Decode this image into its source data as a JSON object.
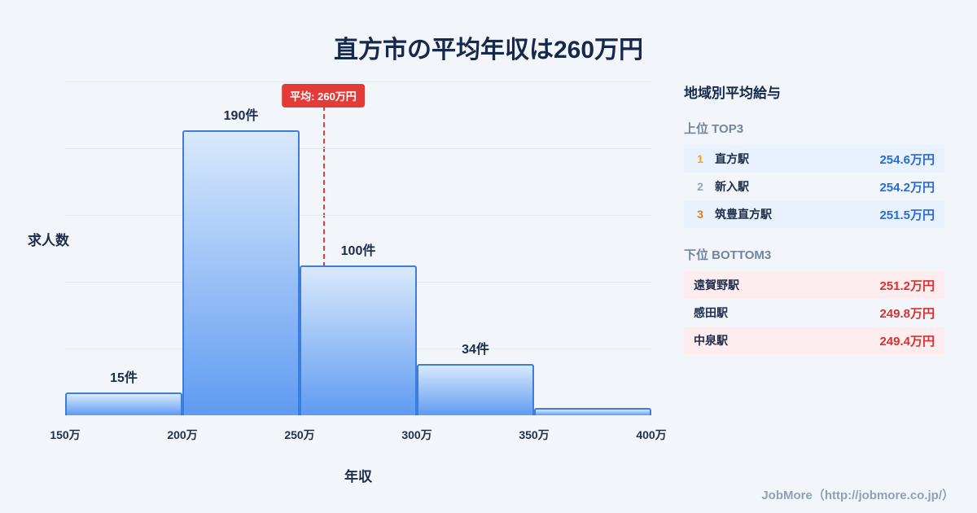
{
  "page": {
    "title": "直方市の平均年収は260万円",
    "footer": "JobMore（http://jobmore.co.jp/）"
  },
  "chart_data": {
    "type": "bar",
    "title": "直方市の平均年収は260万円",
    "xlabel": "年収",
    "ylabel": "求人数",
    "x_ticks": [
      "150万",
      "200万",
      "250万",
      "300万",
      "350万",
      "400万"
    ],
    "x_range": [
      150,
      400
    ],
    "grid": true,
    "bars": [
      {
        "range": "150万-200万",
        "value": 15,
        "label": "15件"
      },
      {
        "range": "200万-250万",
        "value": 190,
        "label": "190件"
      },
      {
        "range": "250万-300万",
        "value": 100,
        "label": "100件"
      },
      {
        "range": "300万-350万",
        "value": 34,
        "label": "34件"
      },
      {
        "range": "350万-400万",
        "value": 5,
        "label": ""
      }
    ],
    "average_line": {
      "value": 260,
      "label": "平均: 260万円"
    }
  },
  "panel": {
    "title": "地域別平均給与",
    "top": {
      "heading": "上位 TOP3",
      "rows": [
        {
          "rank": "1",
          "name": "直方駅",
          "value": "254.6万円"
        },
        {
          "rank": "2",
          "name": "新入駅",
          "value": "254.2万円"
        },
        {
          "rank": "3",
          "name": "筑豊直方駅",
          "value": "251.5万円"
        }
      ]
    },
    "bottom": {
      "heading": "下位 BOTTOM3",
      "rows": [
        {
          "name": "遠賀野駅",
          "value": "251.2万円"
        },
        {
          "name": "感田駅",
          "value": "249.8万円"
        },
        {
          "name": "中泉駅",
          "value": "249.4万円"
        }
      ]
    }
  },
  "colors": {
    "accent_blue": "#2a6bd3",
    "accent_red": "#e23b38",
    "value_red": "#d92f2f",
    "bar_border": "#3c7de0",
    "bar_top": "#d9e9fc",
    "bar_bottom": "#5f9bf2",
    "rank1": "#f2a714",
    "rank2": "#9aa5b4",
    "rank3": "#e8761c",
    "row_blue": "#e8f1fc",
    "row_pink": "#fdedef"
  }
}
